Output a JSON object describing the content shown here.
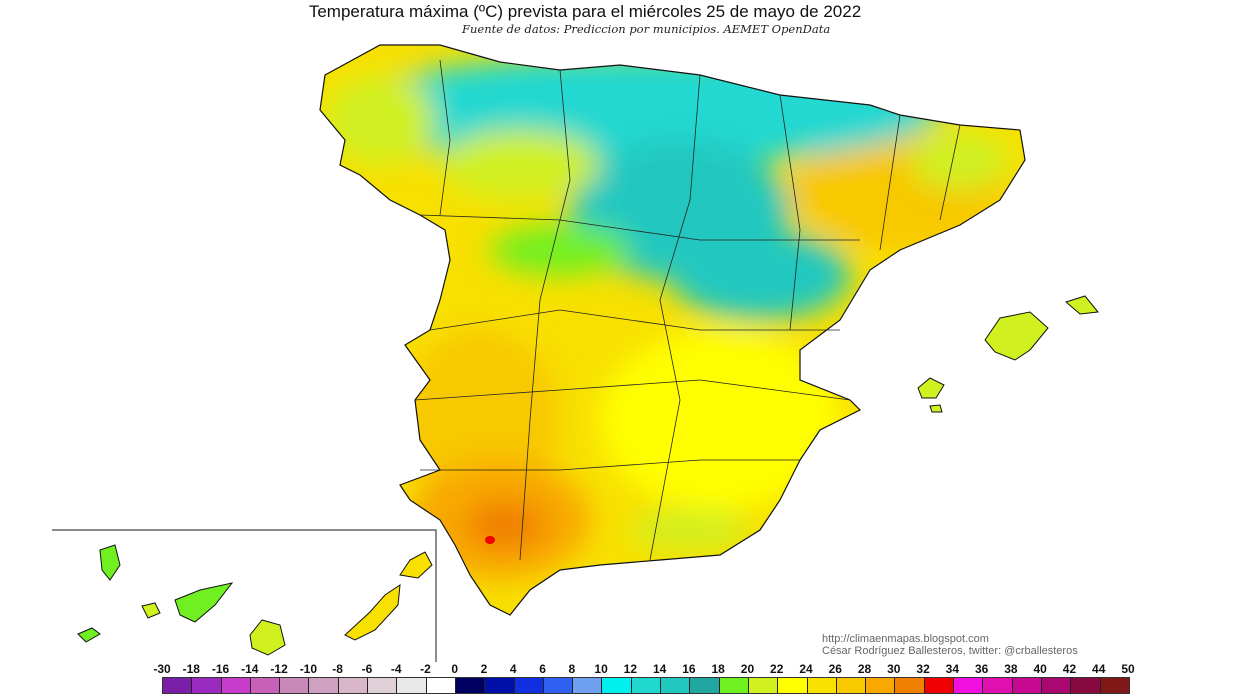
{
  "title": "Temperatura máxima (ºC) prevista para el miércoles 25 de mayo de 2022",
  "subtitle": "Fuente de datos: Prediccion por municipios. AEMET OpenData",
  "credits": {
    "url": "http://climaenmapas.blogspot.com",
    "author": "César Rodríguez Ballesteros, twitter: @crballesteros"
  },
  "legend": {
    "labels": [
      "-30",
      "-18",
      "-16",
      "-14",
      "-12",
      "-10",
      "-8",
      "-6",
      "-4",
      "-2",
      "0",
      "2",
      "4",
      "6",
      "8",
      "10",
      "12",
      "14",
      "16",
      "18",
      "20",
      "22",
      "24",
      "26",
      "28",
      "30",
      "32",
      "34",
      "36",
      "38",
      "40",
      "42",
      "44",
      "50"
    ],
    "colors": [
      "#7a1fa8",
      "#9b2bc0",
      "#c83ccc",
      "#c860b8",
      "#c888b8",
      "#d0a0c0",
      "#d8b8c8",
      "#e0d0d8",
      "#e8e8e8",
      "#ffffff",
      "#000060",
      "#0010a8",
      "#1030e0",
      "#3060f0",
      "#70a0f0",
      "#00f0f0",
      "#20d8d0",
      "#20c8c0",
      "#20a8a0",
      "#70f020",
      "#d0f020",
      "#ffff00",
      "#f8e000",
      "#f8c800",
      "#f8a800",
      "#f08000",
      "#f00000",
      "#f010e0",
      "#e010b0",
      "#c80890",
      "#a80870",
      "#880840",
      "#801818"
    ]
  }
}
